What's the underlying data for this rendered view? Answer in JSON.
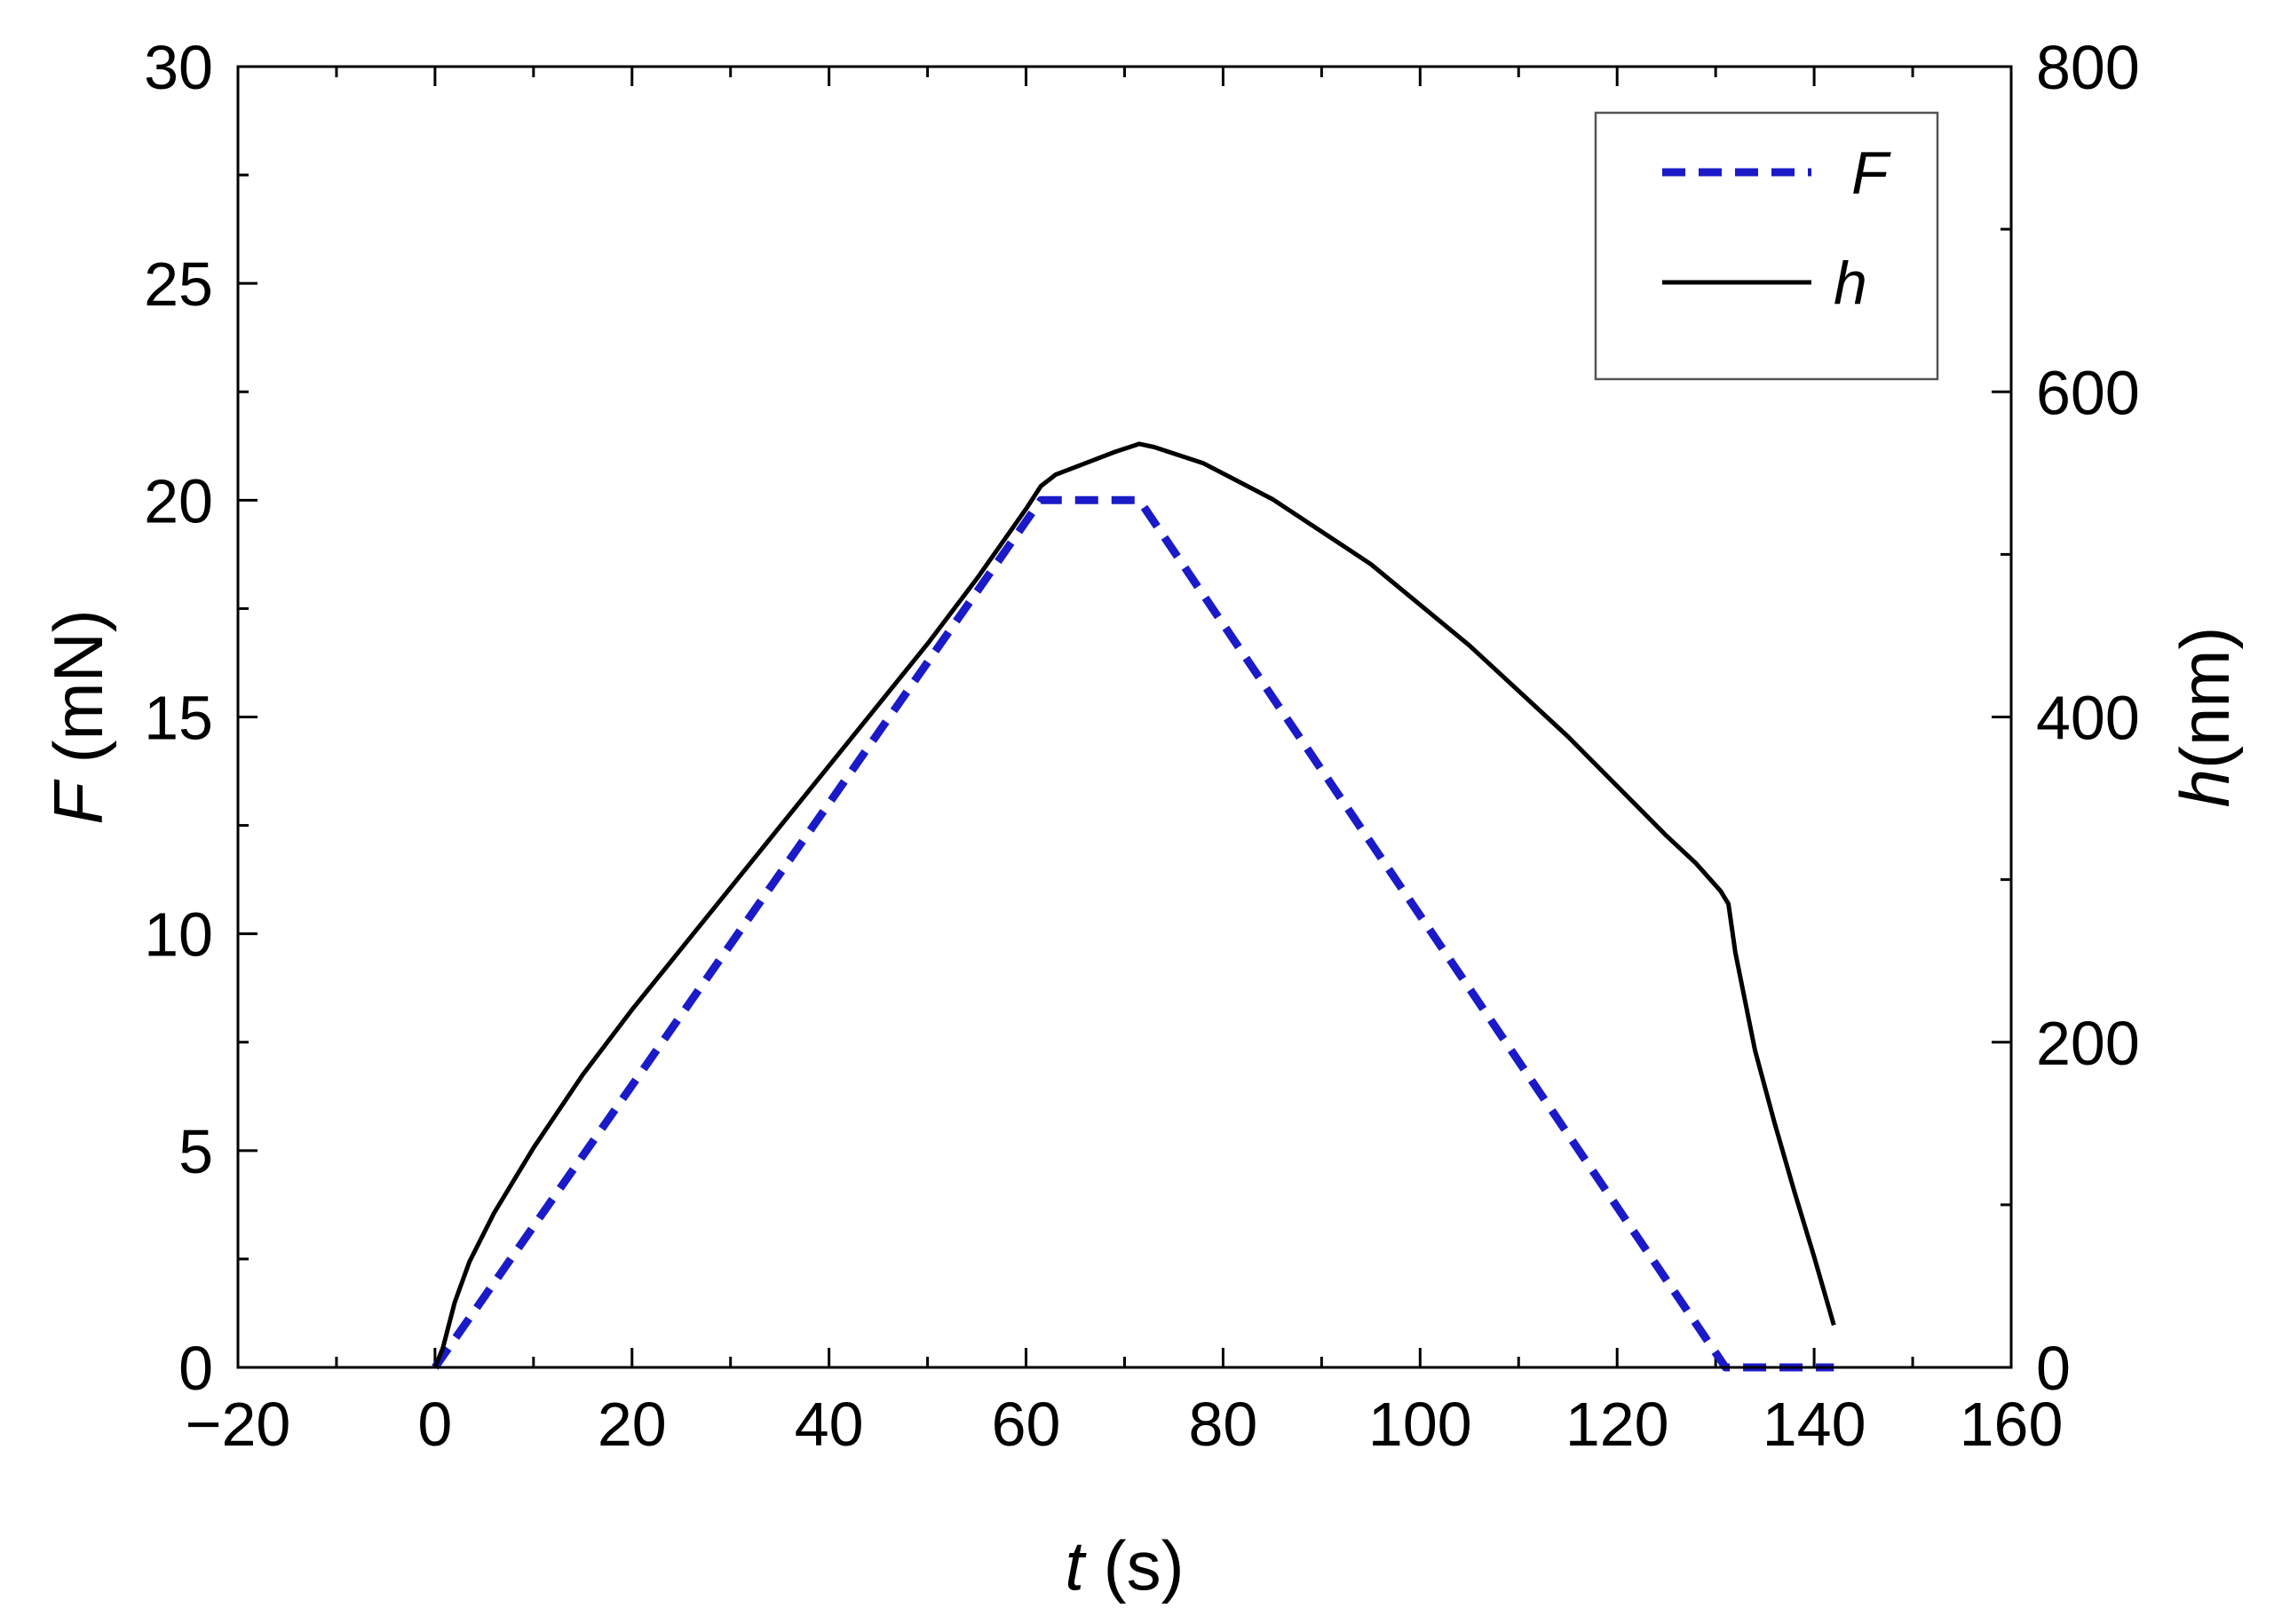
{
  "chart_data": {
    "type": "line",
    "xlabel": {
      "var": "t",
      "unit": " (s)"
    },
    "ylabel_left": {
      "var": "F",
      "unit": " (mN)"
    },
    "ylabel_right": {
      "var": "h",
      "unit": "(nm)"
    },
    "xlim": [
      -20,
      160
    ],
    "ylim_left": [
      0,
      30
    ],
    "ylim_right": [
      0,
      800
    ],
    "x_ticks": [
      -20,
      0,
      20,
      40,
      60,
      80,
      100,
      120,
      140,
      160
    ],
    "x_tick_labels": [
      "−20",
      "0",
      "20",
      "40",
      "60",
      "80",
      "100",
      "120",
      "140",
      "160"
    ],
    "y_left_ticks": [
      0,
      5,
      10,
      15,
      20,
      25,
      30
    ],
    "y_right_ticks": [
      0,
      200,
      400,
      600,
      800
    ],
    "grid": false,
    "legend_position": "top-right",
    "series": [
      {
        "name": "F",
        "axis": "left",
        "color": "#1a1ac8",
        "style": "dashed",
        "x": [
          0,
          61.5,
          71.5,
          131,
          142
        ],
        "y": [
          0,
          20,
          20,
          0,
          0
        ]
      },
      {
        "name": "h",
        "axis": "right",
        "color": "#000000",
        "style": "solid",
        "x": [
          0,
          0.8,
          2,
          3.5,
          6,
          10,
          15,
          20,
          30,
          40,
          50,
          55,
          60,
          61.5,
          63,
          66,
          69,
          71.5,
          73,
          78,
          85,
          95,
          105,
          115,
          125,
          128,
          130.5,
          131.3,
          132,
          134,
          136,
          138,
          140,
          142
        ],
        "y": [
          0,
          12,
          40,
          65,
          95,
          135,
          180,
          220,
          295,
          370,
          445,
          485,
          528,
          542,
          549,
          556,
          563,
          568,
          566,
          556,
          534,
          494,
          444,
          388,
          327,
          310,
          293,
          285,
          255,
          195,
          150,
          108,
          68,
          26
        ]
      }
    ]
  }
}
